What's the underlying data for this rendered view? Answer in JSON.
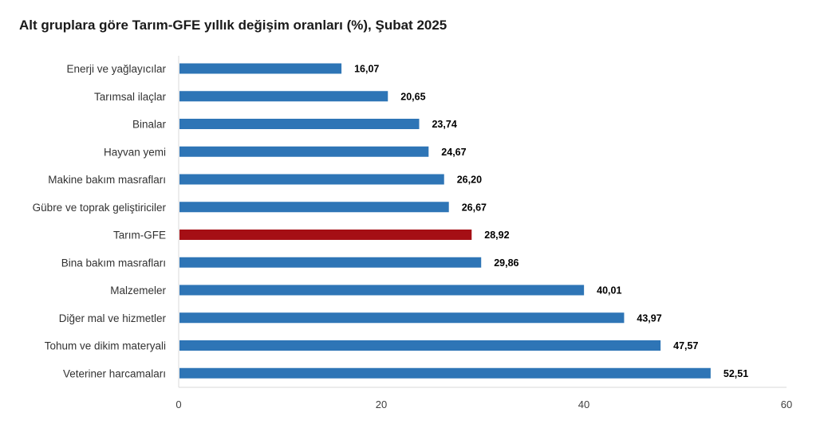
{
  "chart_data": {
    "type": "bar",
    "orientation": "horizontal",
    "title": "Alt gruplara göre Tarım-GFE yıllık değişim oranları (%), Şubat 2025",
    "categories": [
      "Enerji  ve yağlayıcılar",
      "Tarımsal ilaçlar",
      "Binalar",
      "Hayvan yemi",
      "Makine bakım masrafları",
      "Gübre ve toprak geliştiriciler",
      "Tarım-GFE",
      "Bina bakım masrafları",
      "Malzemeler",
      "Diğer mal ve hizmetler",
      "Tohum ve dikim materyali",
      "Veteriner harcamaları"
    ],
    "values": [
      16.07,
      20.65,
      23.74,
      24.67,
      26.2,
      26.67,
      28.92,
      29.86,
      40.01,
      43.97,
      47.57,
      52.51
    ],
    "value_labels": [
      "16,07",
      "20,65",
      "23,74",
      "24,67",
      "26,20",
      "26,67",
      "28,92",
      "29,86",
      "40,01",
      "43,97",
      "47,57",
      "52,51"
    ],
    "highlight_category": "Tarım-GFE",
    "xlim": [
      0,
      60
    ],
    "xticks": [
      0,
      20,
      40,
      60
    ],
    "xlabel": "",
    "ylabel": "",
    "grid": false,
    "legend": "none",
    "colors": {
      "bar": "#2E75B6",
      "highlight": "#A50F15",
      "axis": "#D9D9D9"
    }
  }
}
